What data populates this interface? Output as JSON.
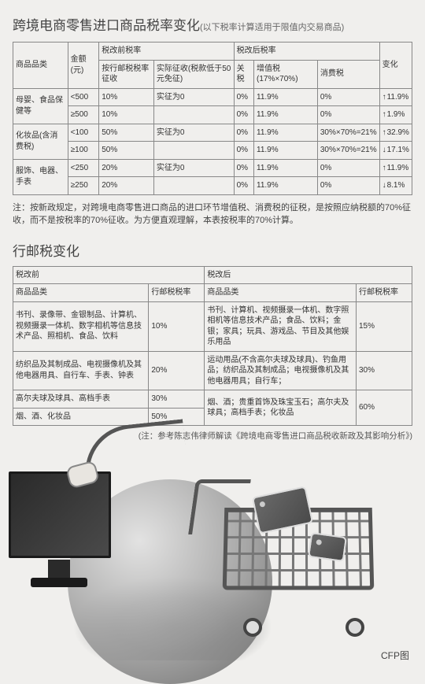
{
  "title_main": "跨境电商零售进口商品税率变化",
  "title_sub": "(以下税率计算适用于限值内交易商品)",
  "t1": {
    "h_cat": "商品品类",
    "h_amt": "金额(元)",
    "h_pre": "税改前税率",
    "h_post": "税改后税率",
    "h_chg": "变化",
    "h_pre1": "按行邮税税率征收",
    "h_pre2": "实际征收(税款低于50元免征)",
    "h_post1": "关税",
    "h_post2": "增值税(17%×70%)",
    "h_post3": "消费税",
    "rows": [
      {
        "cat": "母婴、食品保健等",
        "span": 2,
        "amt": "<500",
        "pre1": "10%",
        "pre2": "实征为0",
        "p1": "0%",
        "p2": "11.9%",
        "p3": "0%",
        "chg": "11.9%",
        "dir": "up"
      },
      {
        "amt": "≥500",
        "pre1": "10%",
        "pre2": "",
        "p1": "0%",
        "p2": "11.9%",
        "p3": "0%",
        "chg": "1.9%",
        "dir": "up"
      },
      {
        "cat": "化妆品(含消费税)",
        "span": 2,
        "amt": "<100",
        "pre1": "50%",
        "pre2": "实征为0",
        "p1": "0%",
        "p2": "11.9%",
        "p3": "30%×70%=21%",
        "chg": "32.9%",
        "dir": "up"
      },
      {
        "amt": "≥100",
        "pre1": "50%",
        "pre2": "",
        "p1": "0%",
        "p2": "11.9%",
        "p3": "30%×70%=21%",
        "chg": "17.1%",
        "dir": "down"
      },
      {
        "cat": "服饰、电器、手表",
        "span": 2,
        "amt": "<250",
        "pre1": "20%",
        "pre2": "实征为0",
        "p1": "0%",
        "p2": "11.9%",
        "p3": "0%",
        "chg": "11.9%",
        "dir": "up"
      },
      {
        "amt": "≥250",
        "pre1": "20%",
        "pre2": "",
        "p1": "0%",
        "p2": "11.9%",
        "p3": "0%",
        "chg": "8.1%",
        "dir": "down"
      }
    ]
  },
  "note": "注：按新政规定，对跨境电商零售进口商品的进口环节增值税、消费税的征税，是按照应纳税额的70%征收，而不是按税率的70%征收。为方便直观理解，本表按税率的70%计算。",
  "title2": "行邮税变化",
  "t2": {
    "h_pre": "税改前",
    "h_post": "税改后",
    "h_cat": "商品品类",
    "h_rate": "行邮税税率",
    "rows": [
      {
        "c1": "书刊、录像带、金银制品、计算机、视频摄录一体机、数字相机等信息技术产品、照相机、食品、饮料",
        "r1": "10%",
        "c2": "书刊、计算机、视频摄录一体机、数字照相机等信息技术产品；食品、饮料；金银；家具；玩具、游戏品、节目及其他娱乐用品",
        "r2": "15%"
      },
      {
        "c1": "纺织品及其制成品、电视摄像机及其他电器用具、自行车、手表、钟表",
        "r1": "20%",
        "c2": "运动用品(不含高尔夫球及球具)、钓鱼用品；纺织品及其制成品；电视摄像机及其他电器用具；自行车；",
        "r2": "30%"
      },
      {
        "c1": "高尔夫球及球具、高档手表",
        "r1": "30%",
        "c2": "烟、酒；贵重首饰及珠宝玉石；高尔夫及球具；高档手表；化妆品",
        "r2": "60%",
        "span2": 2
      },
      {
        "c1": "烟、酒、化妆品",
        "r1": "50%"
      }
    ]
  },
  "cite": "(注：参考陈志伟律师解读《跨境电商零售进口商品税收新政及其影响分析》)",
  "credit": "CFP图",
  "colors": {
    "border": "#888",
    "bg": "#f0efed",
    "text": "#333"
  }
}
